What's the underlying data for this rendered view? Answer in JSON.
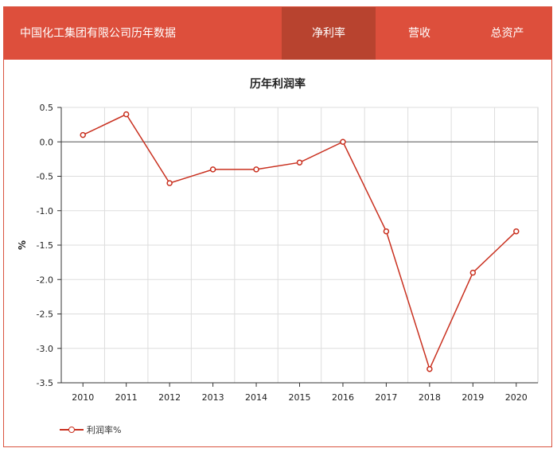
{
  "header": {
    "title": "中国化工集团有限公司历年数据",
    "tabs": [
      {
        "label": "净利率",
        "active": true
      },
      {
        "label": "营收",
        "active": false
      },
      {
        "label": "总资产",
        "active": false
      }
    ]
  },
  "colors": {
    "header_bg": "#dd4f3c",
    "active_tab": "#b8432f",
    "series": "#c9301f"
  },
  "chart_data": {
    "type": "line",
    "title": "历年利润率",
    "xlabel": "",
    "ylabel": "%",
    "categories": [
      "2010",
      "2011",
      "2012",
      "2013",
      "2014",
      "2015",
      "2016",
      "2017",
      "2018",
      "2019",
      "2020"
    ],
    "series": [
      {
        "name": "利润率%",
        "values": [
          0.1,
          0.4,
          -0.6,
          -0.4,
          -0.4,
          -0.3,
          0.0,
          -1.3,
          -3.3,
          -1.9,
          -1.3
        ]
      }
    ],
    "ylim": [
      -3.5,
      0.5
    ],
    "yticks": [
      "0.5",
      "0.0",
      "-0.5",
      "-1.0",
      "-1.5",
      "-2.0",
      "-2.5",
      "-3.0",
      "-3.5"
    ],
    "grid": true,
    "legend": "bottom-left"
  }
}
